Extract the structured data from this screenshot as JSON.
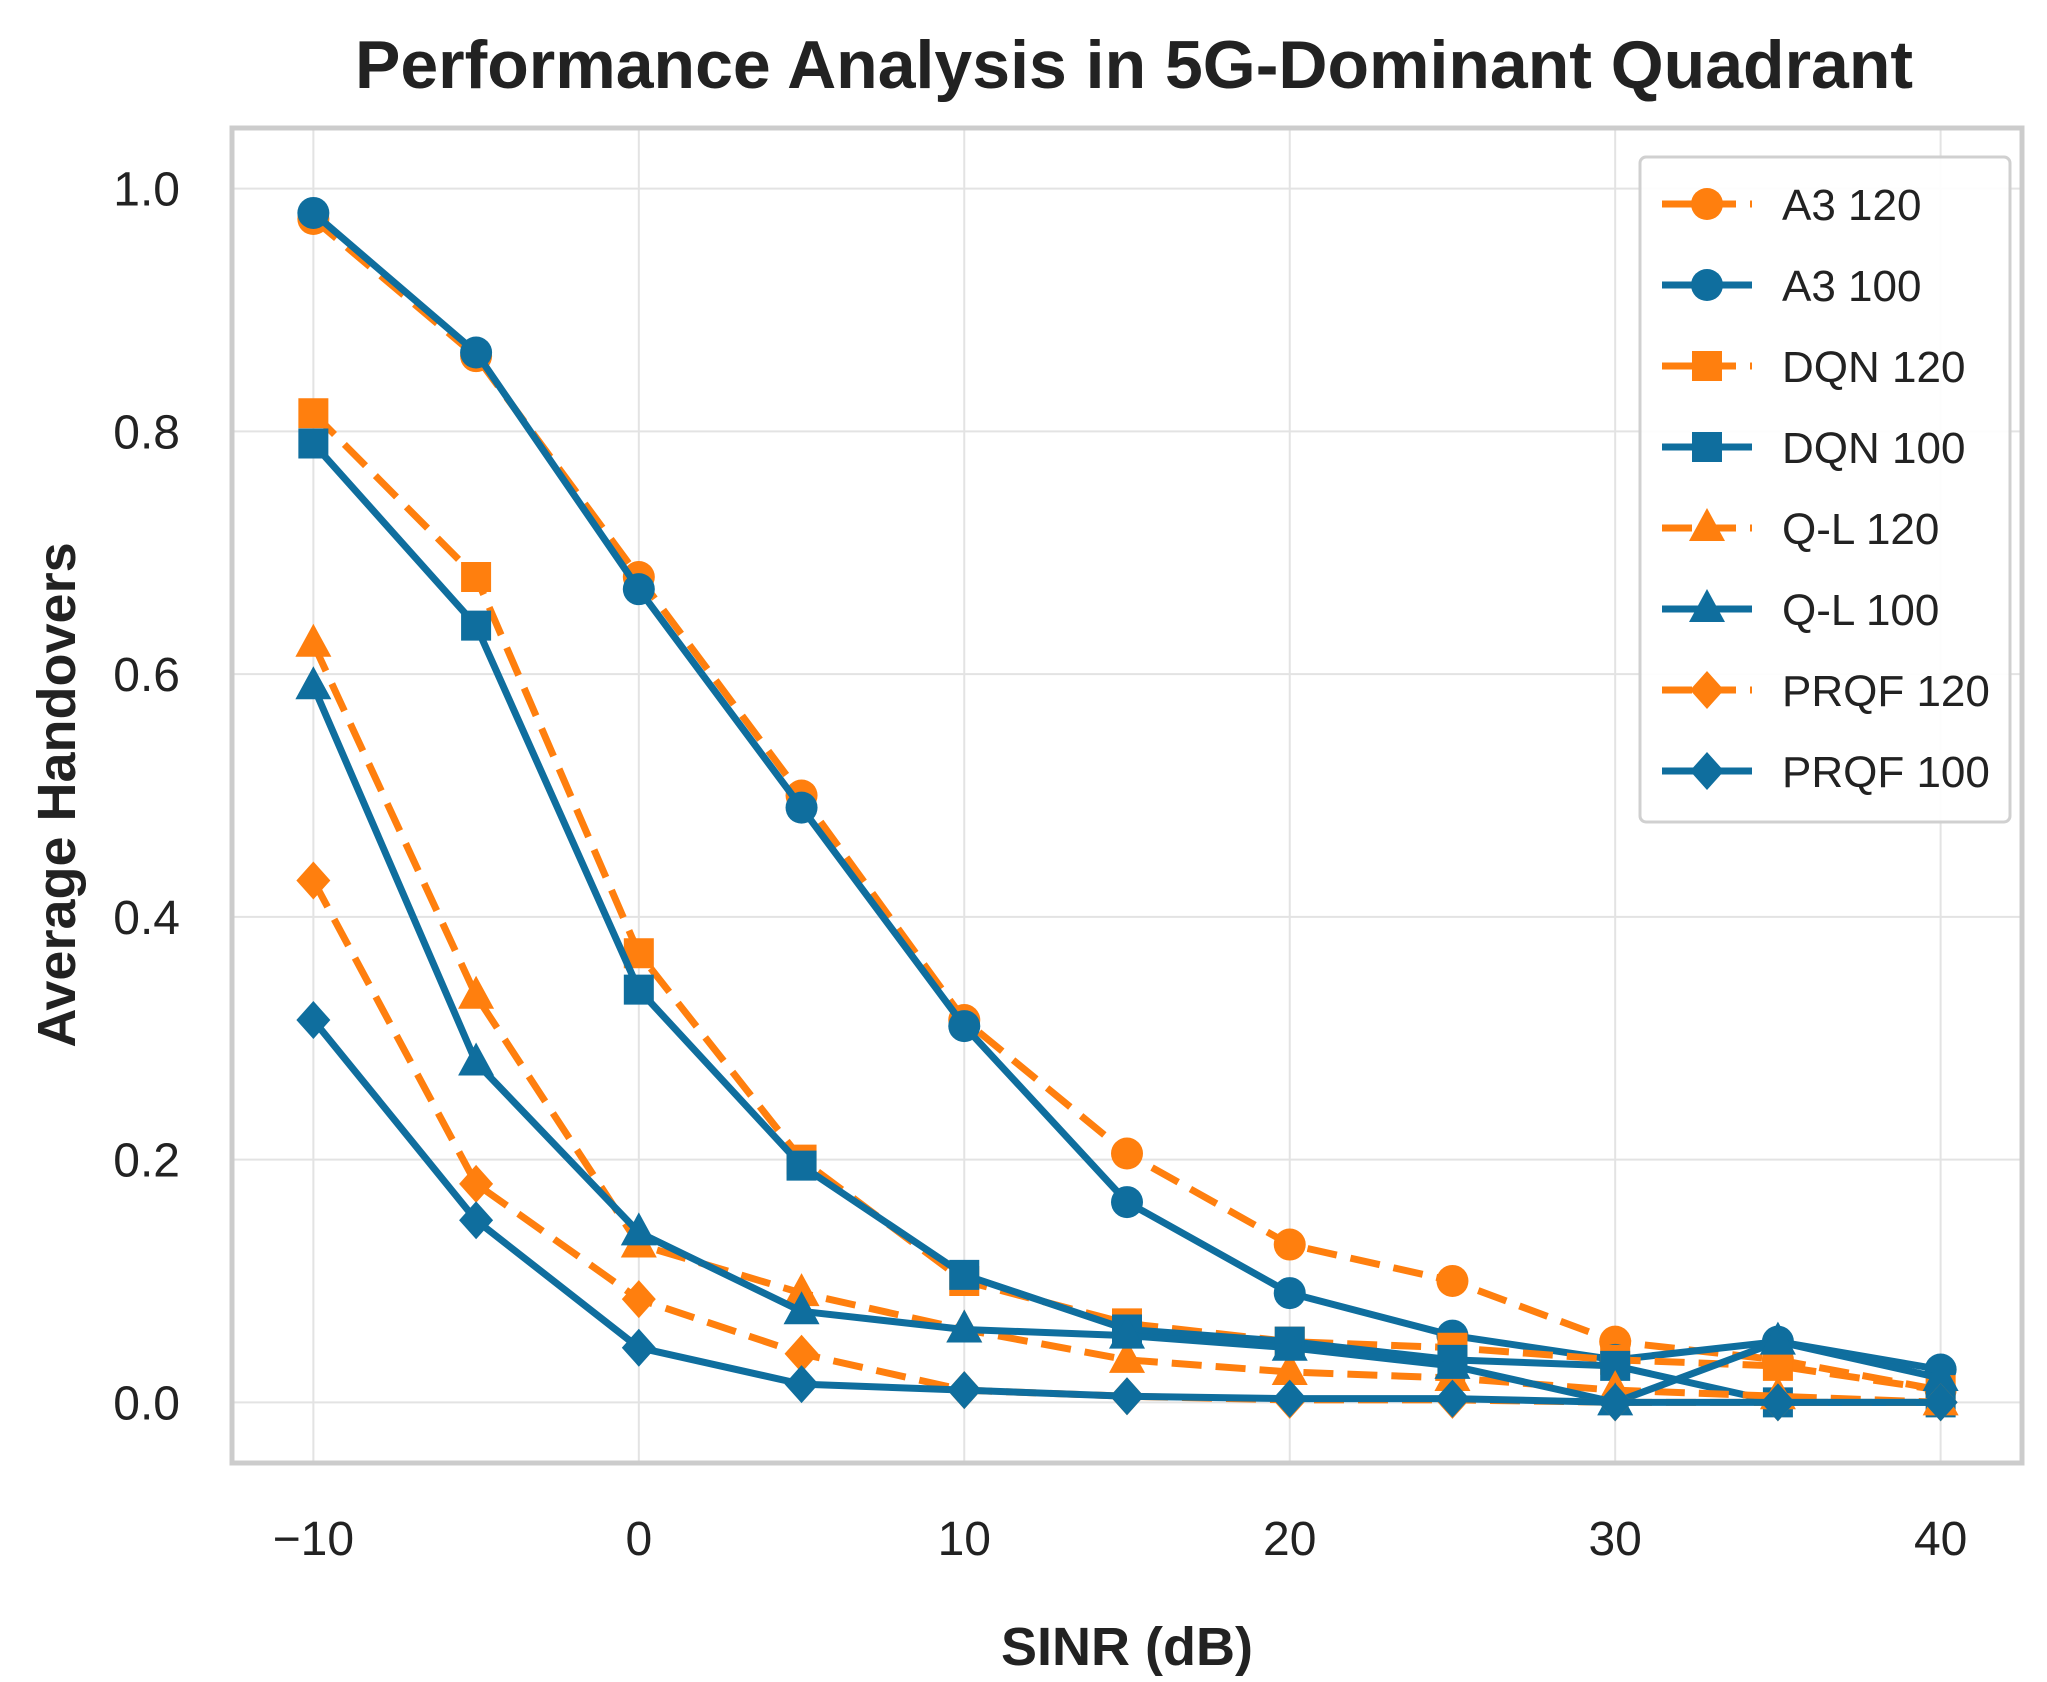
{
  "chart_data": {
    "type": "line",
    "title": "Performance Analysis in 5G-Dominant Quadrant",
    "xlabel": "SINR (dB)",
    "ylabel": "Average Handovers",
    "x": [
      -10,
      -5,
      0,
      5,
      10,
      15,
      20,
      25,
      30,
      35,
      40
    ],
    "xlim": [
      -12.5,
      42.5
    ],
    "ylim": [
      -0.05,
      1.05
    ],
    "xticks": [
      -10,
      0,
      10,
      20,
      30,
      40
    ],
    "xtick_labels": [
      "−10",
      "0",
      "10",
      "20",
      "30",
      "40"
    ],
    "yticks": [
      0.0,
      0.2,
      0.4,
      0.6,
      0.8,
      1.0
    ],
    "ytick_labels": [
      "0.0",
      "0.2",
      "0.4",
      "0.6",
      "0.8",
      "1.0"
    ],
    "grid": true,
    "legend_position": "top-right",
    "colors": {
      "orange": "#ff7f0e",
      "blue": "#0f6e9e"
    },
    "series": [
      {
        "name": "A3 120",
        "color": "#ff7f0e",
        "dash": "dashed",
        "marker": "circle",
        "values": [
          0.975,
          0.862,
          0.68,
          0.5,
          0.315,
          0.205,
          0.13,
          0.1,
          0.05,
          0.035,
          0.01
        ]
      },
      {
        "name": "A3 100",
        "color": "#0f6e9e",
        "dash": "solid",
        "marker": "circle",
        "values": [
          0.98,
          0.865,
          0.67,
          0.49,
          0.31,
          0.165,
          0.09,
          0.055,
          0.035,
          0.05,
          0.027
        ]
      },
      {
        "name": "DQN 120",
        "color": "#ff7f0e",
        "dash": "dashed",
        "marker": "square",
        "values": [
          0.815,
          0.68,
          0.37,
          0.2,
          0.1,
          0.065,
          0.05,
          0.045,
          0.035,
          0.03,
          0.01
        ]
      },
      {
        "name": "DQN 100",
        "color": "#0f6e9e",
        "dash": "solid",
        "marker": "square",
        "values": [
          0.79,
          0.64,
          0.34,
          0.195,
          0.105,
          0.06,
          0.05,
          0.035,
          0.03,
          0.0,
          0.0
        ]
      },
      {
        "name": "Q-L 120",
        "color": "#ff7f0e",
        "dash": "dashed",
        "marker": "triangle",
        "values": [
          0.625,
          0.335,
          0.13,
          0.09,
          0.06,
          0.035,
          0.025,
          0.02,
          0.01,
          0.005,
          0.0
        ]
      },
      {
        "name": "Q-L 100",
        "color": "#0f6e9e",
        "dash": "solid",
        "marker": "triangle",
        "values": [
          0.59,
          0.28,
          0.14,
          0.075,
          0.06,
          0.055,
          0.045,
          0.03,
          0.0,
          0.05,
          0.02
        ]
      },
      {
        "name": "PRQF 120",
        "color": "#ff7f0e",
        "dash": "dashed",
        "marker": "diamond",
        "values": [
          0.43,
          0.18,
          0.085,
          0.04,
          0.01,
          0.005,
          0.002,
          0.002,
          0.0,
          0.0,
          0.0
        ]
      },
      {
        "name": "PRQF 100",
        "color": "#0f6e9e",
        "dash": "solid",
        "marker": "diamond",
        "values": [
          0.315,
          0.15,
          0.045,
          0.015,
          0.01,
          0.005,
          0.003,
          0.003,
          0.0,
          0.0,
          0.0
        ]
      }
    ]
  }
}
